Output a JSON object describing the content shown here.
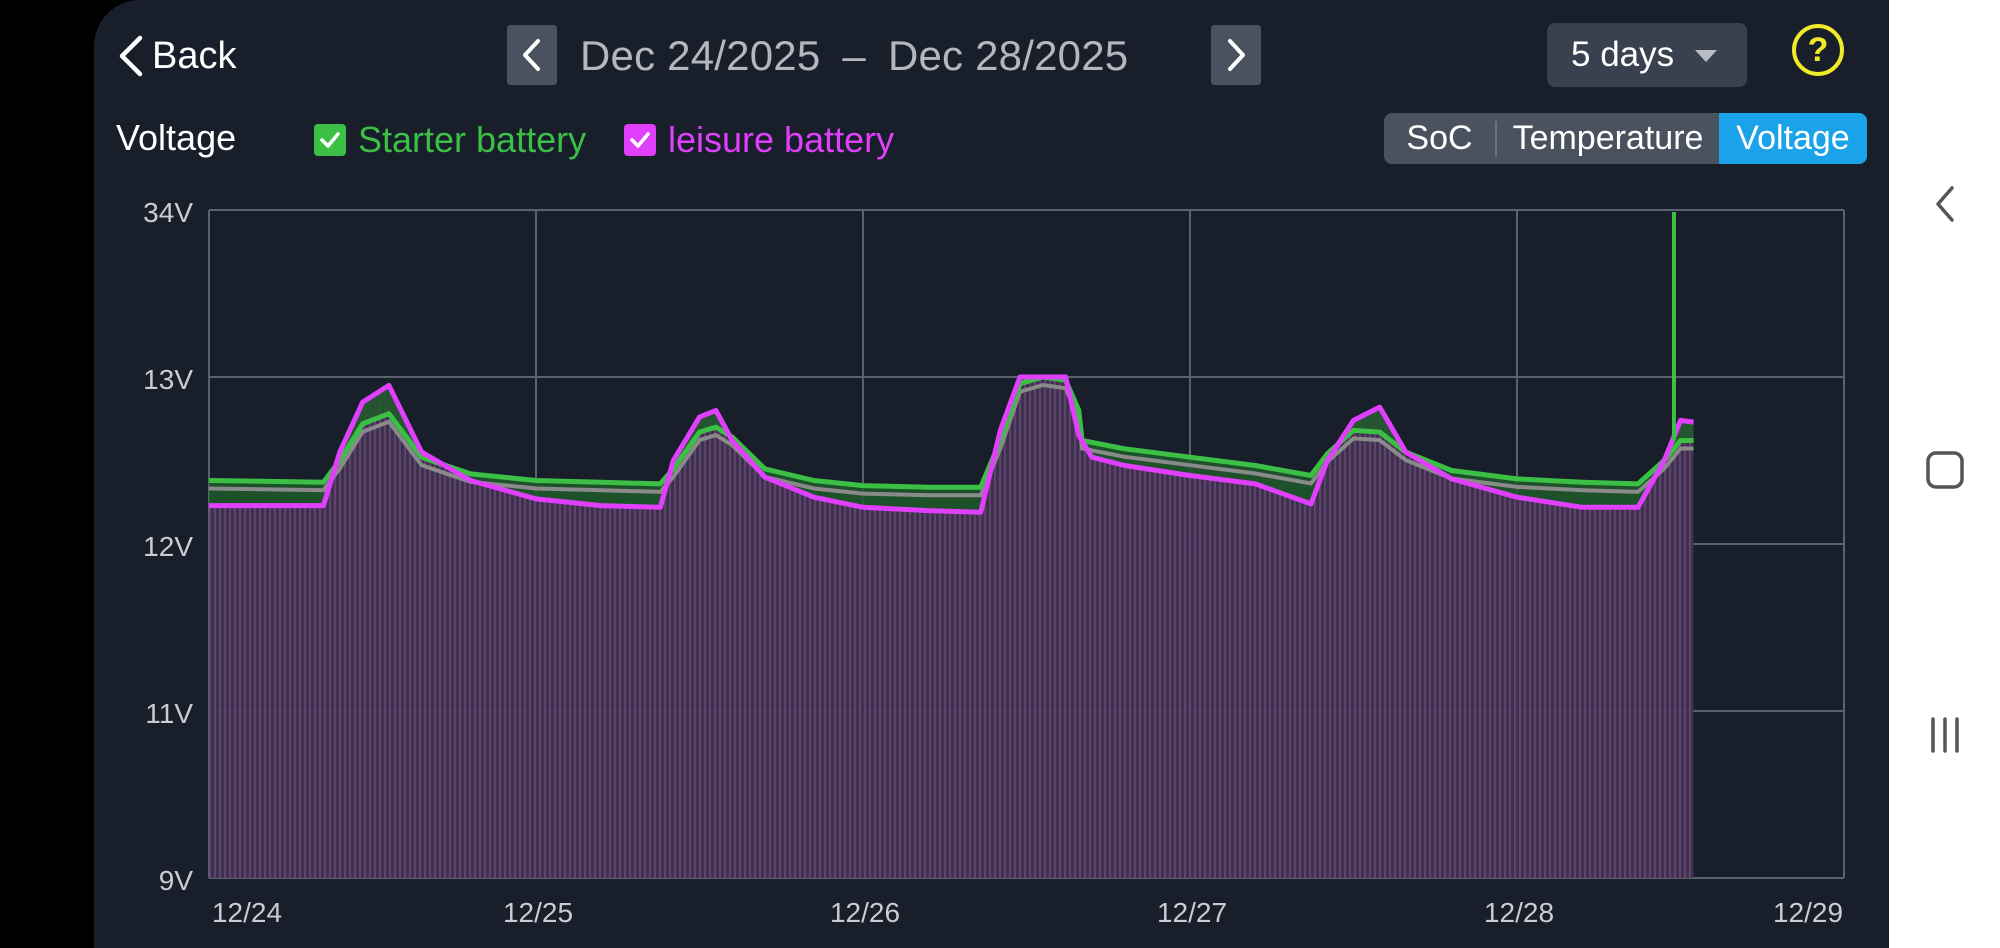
{
  "header": {
    "back_label": "Back",
    "range_start": "Dec 24/2025",
    "range_dash": "–",
    "range_end": "Dec 28/2025",
    "period_selected": "5 days",
    "help_symbol": "?"
  },
  "chart_header": {
    "title": "Voltage",
    "legend": [
      {
        "label": "Starter battery",
        "color": "#3bbf45",
        "checked": true
      },
      {
        "label": "leisure battery",
        "color": "#e040fb",
        "checked": true
      }
    ]
  },
  "metric_tabs": {
    "options": [
      "SoC",
      "Temperature",
      "Voltage"
    ],
    "selected": "Voltage",
    "accent": "#1aa3e8"
  },
  "chart_data": {
    "type": "area",
    "y_tick_labels": [
      "34V",
      "13V",
      "12V",
      "11V",
      "9V"
    ],
    "x_tick_labels": [
      "12/24",
      "12/25",
      "12/26",
      "12/27",
      "12/28",
      "12/29"
    ],
    "grid": true,
    "x_range": [
      0,
      5
    ],
    "series": [
      {
        "name": "Starter battery",
        "color": "#3bbf45",
        "x": [
          0,
          0.35,
          0.4,
          0.47,
          0.55,
          0.65,
          0.8,
          1.0,
          1.2,
          1.38,
          1.42,
          1.5,
          1.55,
          1.6,
          1.7,
          1.85,
          2.0,
          2.2,
          2.36,
          2.42,
          2.48,
          2.55,
          2.62,
          2.66,
          2.67,
          2.8,
          3.0,
          3.2,
          3.37,
          3.42,
          3.5,
          3.58,
          3.66,
          3.8,
          4.0,
          4.2,
          4.37,
          4.45,
          4.5,
          4.54
        ],
        "y": [
          12.38,
          12.37,
          12.5,
          12.72,
          12.78,
          12.52,
          12.42,
          12.38,
          12.37,
          12.36,
          12.45,
          12.67,
          12.7,
          12.64,
          12.45,
          12.38,
          12.35,
          12.34,
          12.34,
          12.62,
          12.96,
          13.0,
          12.98,
          12.8,
          12.62,
          12.57,
          12.52,
          12.47,
          12.41,
          12.54,
          12.68,
          12.67,
          12.55,
          12.44,
          12.39,
          12.37,
          12.36,
          12.5,
          12.62,
          12.62
        ]
      },
      {
        "name": "leisure battery",
        "color": "#e040fb",
        "x": [
          0,
          0.35,
          0.4,
          0.47,
          0.55,
          0.65,
          0.8,
          1.0,
          1.2,
          1.38,
          1.42,
          1.5,
          1.55,
          1.6,
          1.7,
          1.85,
          2.0,
          2.2,
          2.36,
          2.42,
          2.48,
          2.55,
          2.62,
          2.66,
          2.7,
          2.8,
          3.0,
          3.2,
          3.37,
          3.42,
          3.5,
          3.58,
          3.66,
          3.8,
          4.0,
          4.2,
          4.37,
          4.45,
          4.5,
          4.54
        ],
        "y": [
          12.23,
          12.23,
          12.55,
          12.85,
          12.95,
          12.55,
          12.38,
          12.27,
          12.23,
          12.22,
          12.5,
          12.76,
          12.8,
          12.62,
          12.4,
          12.28,
          12.22,
          12.2,
          12.19,
          12.68,
          13.0,
          13.0,
          13.0,
          12.65,
          12.52,
          12.47,
          12.41,
          12.36,
          12.24,
          12.5,
          12.74,
          12.82,
          12.55,
          12.39,
          12.28,
          12.22,
          12.22,
          12.5,
          12.74,
          12.73
        ]
      }
    ]
  }
}
